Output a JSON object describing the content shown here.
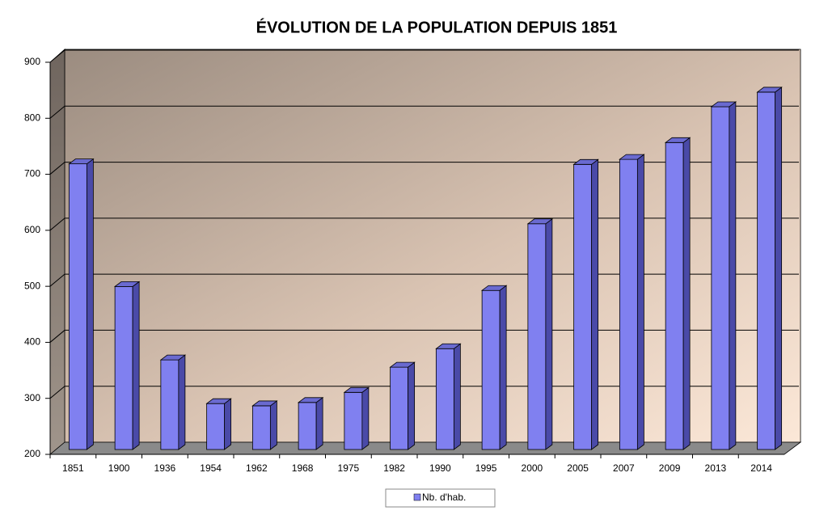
{
  "chart_data": {
    "type": "bar3d",
    "title": "ÉVOLUTION DE LA POPULATION DEPUIS 1851",
    "categories": [
      "1851",
      "1900",
      "1936",
      "1954",
      "1962",
      "1968",
      "1975",
      "1982",
      "1990",
      "1995",
      "2000",
      "2005",
      "2007",
      "2009",
      "2013",
      "2014"
    ],
    "series": [
      {
        "name": "Nb. d'hab.",
        "color": "#8080f0",
        "values": [
          710,
          491,
          360,
          282,
          278,
          284,
          302,
          347,
          380,
          484,
          603,
          709,
          718,
          748,
          812,
          838
        ]
      }
    ],
    "ylim": [
      200,
      900
    ],
    "yticks": [
      200,
      300,
      400,
      500,
      600,
      700,
      800,
      900
    ],
    "grid": true,
    "legend": "bottom"
  }
}
